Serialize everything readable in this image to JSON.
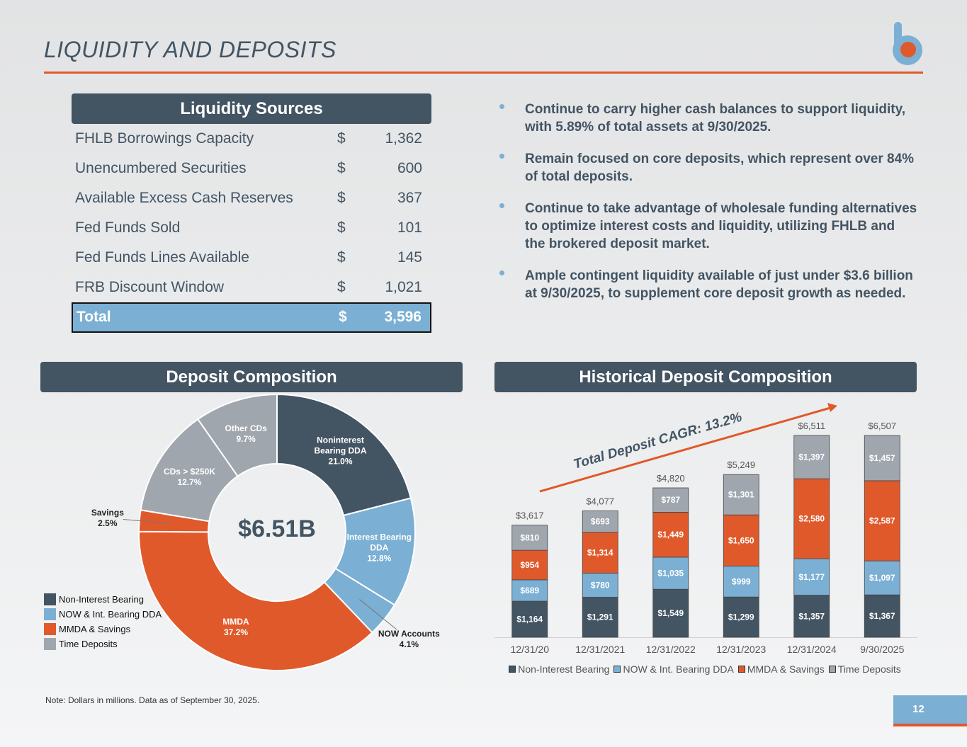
{
  "header": {
    "title": "LIQUIDITY AND DEPOSITS"
  },
  "liquidity_table": {
    "title": "Liquidity Sources",
    "rows": [
      [
        "FHLB Borrowings Capacity",
        "$",
        "1,362"
      ],
      [
        "Unencumbered Securities",
        "$",
        "600"
      ],
      [
        "Available Excess Cash Reserves",
        "$",
        "367"
      ],
      [
        "Fed Funds Sold",
        "$",
        "101"
      ],
      [
        "Fed Funds Lines Available",
        "$",
        "145"
      ],
      [
        "FRB Discount Window",
        "$",
        "1,021"
      ]
    ],
    "total": [
      "Total",
      "$",
      "3,596"
    ]
  },
  "bullets": [
    "Continue to carry higher cash balances to support liquidity, with 5.89% of total assets at 9/30/2025.",
    "Remain focused on core deposits, which represent over 84% of total deposits.",
    "Continue to take advantage of wholesale funding alternatives to optimize interest costs and liquidity, utilizing FHLB and the brokered deposit market.",
    "Ample contingent liquidity available of just under $3.6 billion at 9/30/2025, to supplement core deposit growth as needed."
  ],
  "chart_data": [
    {
      "type": "pie",
      "title": "Deposit Composition",
      "center_label": "$6.51B",
      "categories": [
        "Noninterest Bearing DDA",
        "Interest Bearing DDA",
        "NOW Accounts",
        "MMDA",
        "Savings",
        "CDs > $250K",
        "Other CDs"
      ],
      "values": [
        21.0,
        12.8,
        4.1,
        37.2,
        2.5,
        12.7,
        9.7
      ],
      "value_labels": [
        "21.0%",
        "12.8%",
        "4.1%",
        "37.2%",
        "2.5%",
        "12.7%",
        "9.7%"
      ],
      "colors": [
        "#435463",
        "#7bafd4",
        "#7bafd4",
        "#e0592a",
        "#e0592a",
        "#a0a6ae",
        "#a0a6ae"
      ],
      "legend": [
        {
          "name": "Non-Interest Bearing",
          "color": "#435463"
        },
        {
          "name": "NOW & Int. Bearing DDA",
          "color": "#7bafd4"
        },
        {
          "name": "MMDA & Savings",
          "color": "#e0592a"
        },
        {
          "name": "Time Deposits",
          "color": "#a0a6ae"
        }
      ]
    },
    {
      "type": "stacked_bar",
      "title": "Historical Deposit Composition",
      "annotation": "Total Deposit CAGR: 13.2%",
      "categories": [
        "12/31/20",
        "12/31/2021",
        "12/31/2022",
        "12/31/2023",
        "12/31/2024",
        "9/30/2025"
      ],
      "series": [
        {
          "name": "Non-Interest Bearing",
          "color": "#435463",
          "values": [
            1164,
            1291,
            1549,
            1299,
            1357,
            1367
          ],
          "value_labels": [
            "$1,164",
            "$1,291",
            "$1,549",
            "$1,299",
            "$1,357",
            "$1,367"
          ]
        },
        {
          "name": "NOW & Int. Bearing DDA",
          "color": "#7bafd4",
          "values": [
            689,
            780,
            1035,
            999,
            1177,
            1097
          ],
          "value_labels": [
            "$689",
            "$780",
            "$1,035",
            "$999",
            "$1,177",
            "$1,097"
          ]
        },
        {
          "name": "MMDA & Savings",
          "color": "#e0592a",
          "values": [
            954,
            1314,
            1449,
            1650,
            2580,
            2587
          ],
          "value_labels": [
            "$954",
            "$1,314",
            "$1,449",
            "$1,650",
            "$2,580",
            "$2,587"
          ]
        },
        {
          "name": "Time Deposits",
          "color": "#a0a6ae",
          "values": [
            810,
            693,
            787,
            1301,
            1397,
            1457
          ],
          "value_labels": [
            "$810",
            "$693",
            "$787",
            "$1,301",
            "$1,397",
            "$1,457"
          ]
        }
      ],
      "totals": [
        3617,
        4077,
        4820,
        5249,
        6511,
        6507
      ],
      "total_labels": [
        "$3,617",
        "$4,077",
        "$4,820",
        "$5,249",
        "$6,511",
        "$6,507"
      ]
    }
  ],
  "note": "Note: Dollars in millions. Data as of September 30, 2025.",
  "page_number": "12"
}
